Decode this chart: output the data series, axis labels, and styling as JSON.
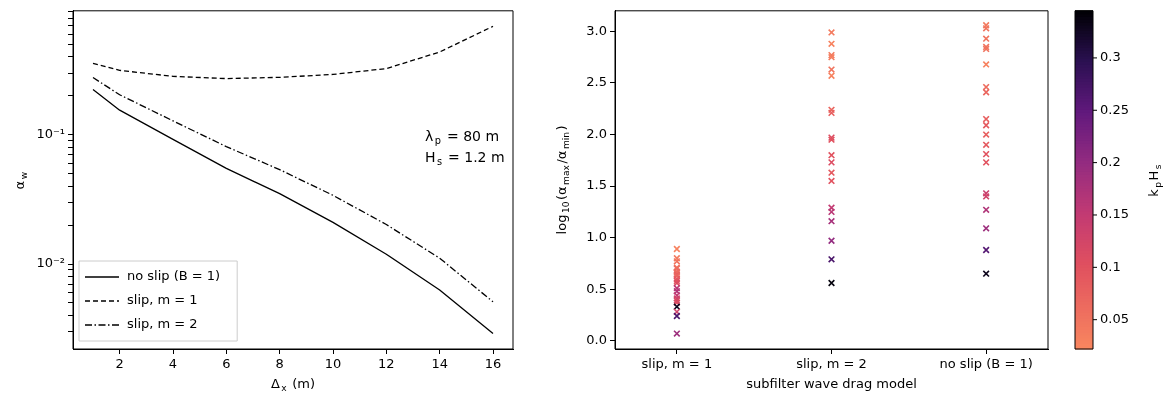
{
  "chart_data": [
    {
      "type": "line",
      "xlabel": "Δ$_{x}$ (m)",
      "ylabel": "α$_{w}$",
      "log": "y",
      "grid": false,
      "legend": "bottom left",
      "marker": "none",
      "xlim": [
        0.25,
        16.75
      ],
      "xticks": [
        2,
        4,
        6,
        8,
        10,
        12,
        14,
        16
      ],
      "ylim": [
        0.0022,
        0.91
      ],
      "yticks": [
        {
          "value": 0.003,
          "label": null
        },
        {
          "value": 0.004,
          "label": null
        },
        {
          "value": 0.005,
          "label": null
        },
        {
          "value": 0.006,
          "label": null
        },
        {
          "value": 0.007,
          "label": null
        },
        {
          "value": 0.008,
          "label": null
        },
        {
          "value": 0.009,
          "label": null
        },
        {
          "value": 0.01,
          "label": "10⁻²"
        },
        {
          "value": 0.02,
          "label": null
        },
        {
          "value": 0.03,
          "label": null
        },
        {
          "value": 0.04,
          "label": null
        },
        {
          "value": 0.05,
          "label": null
        },
        {
          "value": 0.06,
          "label": null
        },
        {
          "value": 0.07,
          "label": null
        },
        {
          "value": 0.08,
          "label": null
        },
        {
          "value": 0.09,
          "label": null
        },
        {
          "value": 0.1,
          "label": "10⁻¹"
        },
        {
          "value": 0.2,
          "label": null
        },
        {
          "value": 0.3,
          "label": null
        },
        {
          "value": 0.4,
          "label": null
        },
        {
          "value": 0.5,
          "label": null
        },
        {
          "value": 0.6,
          "label": null
        },
        {
          "value": 0.7,
          "label": null
        },
        {
          "value": 0.8,
          "label": null
        },
        {
          "value": 0.9,
          "label": null
        }
      ],
      "x": [
        1,
        2,
        4,
        6,
        8,
        10,
        12,
        14,
        16
      ],
      "series": [
        {
          "name": "no slip (B = 1)",
          "color": "#000000",
          "line_style": "solid",
          "values": [
            0.224,
            0.155,
            0.092,
            0.055,
            0.035,
            0.021,
            0.0119,
            0.0063,
            0.0029
          ]
        },
        {
          "name": "slip, m = 1",
          "color": "#000000",
          "line_style": "dashed",
          "values": [
            0.357,
            0.315,
            0.283,
            0.272,
            0.278,
            0.293,
            0.325,
            0.437,
            0.69
          ]
        },
        {
          "name": "slip, m = 2",
          "color": "#000000",
          "line_style": "dashdot",
          "values": [
            0.277,
            0.204,
            0.128,
            0.081,
            0.0537,
            0.034,
            0.0202,
            0.0111,
            0.0051
          ]
        }
      ],
      "annotations": [
        "λ$_{p}$ = 80 m",
        "H$_{s}$ = 1.2 m"
      ]
    },
    {
      "type": "scatter",
      "xlabel": "subfilter wave drag model",
      "ylabel": "log$_{10}$(α$_{max}$/α$_{min}$)",
      "clabel": "k$_{p}$H$_{s}$",
      "grid": false,
      "marker": "cross",
      "categories": [
        "slip, m = 1",
        "slip, m = 2",
        "no slip (B = 1)"
      ],
      "ylim": [
        -0.08,
        3.2
      ],
      "yticks": [
        {
          "value": 0,
          "label": "0.0"
        },
        {
          "value": 0.5,
          "label": "0.5"
        },
        {
          "value": 1,
          "label": "1.0"
        },
        {
          "value": 1.5,
          "label": "1.5"
        },
        {
          "value": 2,
          "label": "2.0"
        },
        {
          "value": 2.5,
          "label": "2.5"
        },
        {
          "value": 3,
          "label": "3.0"
        }
      ],
      "clim": [
        0.022,
        0.345
      ],
      "cticks": [
        0.05,
        0.1,
        0.15,
        0.2,
        0.25,
        0.3
      ],
      "series": [
        {
          "x": [
            "slip, m = 1",
            "slip, m = 1",
            "slip, m = 1",
            "slip, m = 1",
            "slip, m = 1",
            "slip, m = 1",
            "slip, m = 1",
            "slip, m = 1",
            "slip, m = 1",
            "slip, m = 1",
            "slip, m = 1",
            "slip, m = 1",
            "slip, m = 1",
            "slip, m = 1",
            "slip, m = 1",
            "slip, m = 1",
            "slip, m = 1",
            "slip, m = 1",
            "slip, m = 1",
            "slip, m = 1",
            "slip, m = 1",
            "slip, m = 1",
            "slip, m = 2",
            "slip, m = 2",
            "slip, m = 2",
            "slip, m = 2",
            "slip, m = 2",
            "slip, m = 2",
            "slip, m = 2",
            "slip, m = 2",
            "slip, m = 2",
            "slip, m = 2",
            "slip, m = 2",
            "slip, m = 2",
            "slip, m = 2",
            "slip, m = 2",
            "slip, m = 2",
            "slip, m = 2",
            "slip, m = 2",
            "slip, m = 2",
            "slip, m = 2",
            "slip, m = 2",
            "no slip (B = 1)",
            "no slip (B = 1)",
            "no slip (B = 1)",
            "no slip (B = 1)",
            "no slip (B = 1)",
            "no slip (B = 1)",
            "no slip (B = 1)",
            "no slip (B = 1)",
            "no slip (B = 1)",
            "no slip (B = 1)",
            "no slip (B = 1)",
            "no slip (B = 1)",
            "no slip (B = 1)",
            "no slip (B = 1)",
            "no slip (B = 1)",
            "no slip (B = 1)",
            "no slip (B = 1)",
            "no slip (B = 1)",
            "no slip (B = 1)",
            "no slip (B = 1)"
          ],
          "values": [
            0.89,
            0.8,
            0.77,
            0.71,
            0.7,
            0.67,
            0.66,
            0.64,
            0.63,
            0.6,
            0.58,
            0.56,
            0.51,
            0.48,
            0.44,
            0.41,
            0.39,
            0.37,
            0.33,
            0.28,
            0.24,
            0.07,
            2.99,
            2.88,
            2.77,
            2.75,
            2.63,
            2.57,
            2.24,
            2.21,
            1.97,
            1.95,
            1.8,
            1.73,
            1.63,
            1.55,
            1.29,
            1.25,
            1.16,
            0.97,
            0.79,
            0.56,
            3.06,
            3.03,
            2.93,
            2.85,
            2.83,
            2.68,
            2.46,
            2.41,
            2.15,
            2.09,
            2.0,
            1.9,
            1.81,
            1.73,
            1.43,
            1.4,
            1.27,
            1.09,
            0.88,
            0.65
          ],
          "cvalues": [
            0.03,
            0.04,
            0.05,
            0.05,
            0.06,
            0.07,
            0.06,
            0.08,
            0.07,
            0.09,
            0.1,
            0.11,
            0.16,
            0.17,
            0.15,
            0.13,
            0.12,
            0.11,
            0.33,
            0.13,
            0.27,
            0.19,
            0.04,
            0.03,
            0.04,
            0.035,
            0.05,
            0.03,
            0.07,
            0.08,
            0.11,
            0.1,
            0.1,
            0.11,
            0.09,
            0.1,
            0.15,
            0.16,
            0.18,
            0.2,
            0.27,
            0.34,
            0.04,
            0.05,
            0.05,
            0.05,
            0.05,
            0.03,
            0.06,
            0.07,
            0.08,
            0.09,
            0.08,
            0.09,
            0.1,
            0.1,
            0.14,
            0.13,
            0.17,
            0.19,
            0.26,
            0.33
          ]
        }
      ]
    }
  ]
}
